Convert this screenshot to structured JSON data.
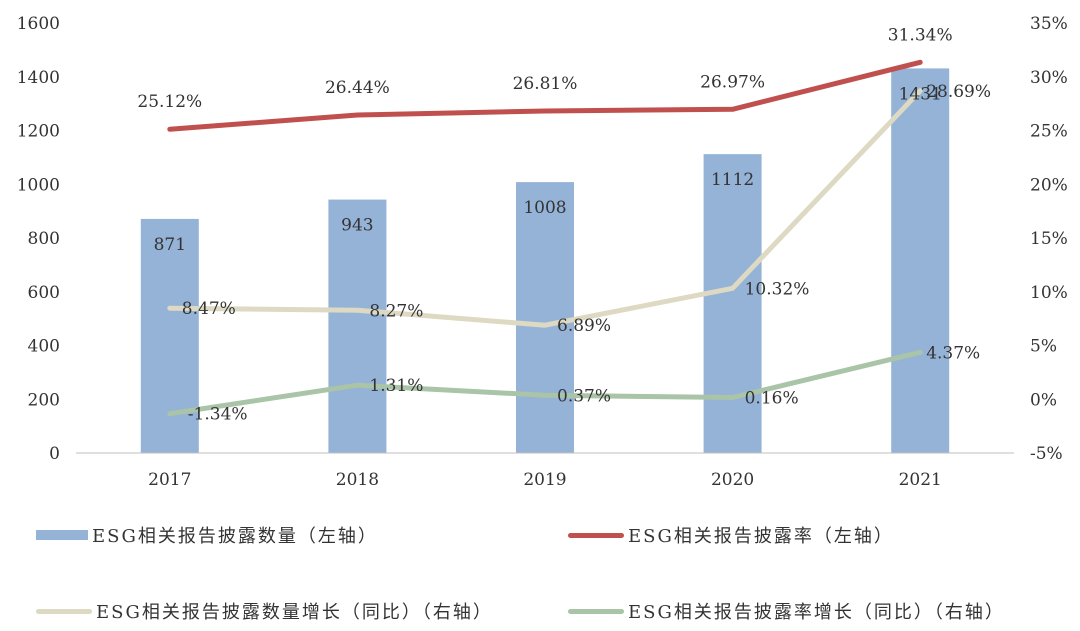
{
  "chart_data": {
    "type": "bar",
    "categories": [
      "2017",
      "2018",
      "2019",
      "2020",
      "2021"
    ],
    "left_axis": {
      "ticks": [
        "0",
        "200",
        "400",
        "600",
        "800",
        "1000",
        "1200",
        "1400",
        "1600"
      ],
      "ylim": [
        0,
        1600
      ]
    },
    "right_axis": {
      "ticks": [
        "-5%",
        "0%",
        "5%",
        "10%",
        "15%",
        "20%",
        "25%",
        "30%",
        "35%"
      ],
      "ylim": [
        -5,
        35
      ]
    },
    "series": [
      {
        "name": "ESG相关报告披露数量（左轴）",
        "type": "bar",
        "axis": "left",
        "color": "#95b3d7",
        "values": [
          871,
          943,
          1008,
          1112,
          1431
        ],
        "labels": [
          "871",
          "943",
          "1008",
          "1112",
          "1431"
        ]
      },
      {
        "name": "ESG相关报告披露率（左轴）",
        "type": "line",
        "axis": "right",
        "color": "#c0504d",
        "values": [
          25.12,
          26.44,
          26.81,
          26.97,
          31.34
        ],
        "labels": [
          "25.12%",
          "26.44%",
          "26.81%",
          "26.97%",
          "31.34%"
        ]
      },
      {
        "name": "ESG相关报告披露数量增长（同比）（右轴）",
        "type": "line",
        "axis": "right",
        "color": "#ddd9c3",
        "values": [
          8.47,
          8.27,
          6.89,
          10.32,
          28.69
        ],
        "labels": [
          "8.47%",
          "8.27%",
          "6.89%",
          "10.32%",
          "28.69%"
        ]
      },
      {
        "name": "ESG相关报告披露率增长（同比）（右轴）",
        "type": "line",
        "axis": "right",
        "color": "#a9c4a6",
        "values": [
          -1.34,
          1.31,
          0.37,
          0.16,
          4.37
        ],
        "labels": [
          "-1.34%",
          "1.31%",
          "0.37%",
          "0.16%",
          "4.37%"
        ]
      }
    ],
    "grid": false,
    "legend_position": "bottom"
  }
}
